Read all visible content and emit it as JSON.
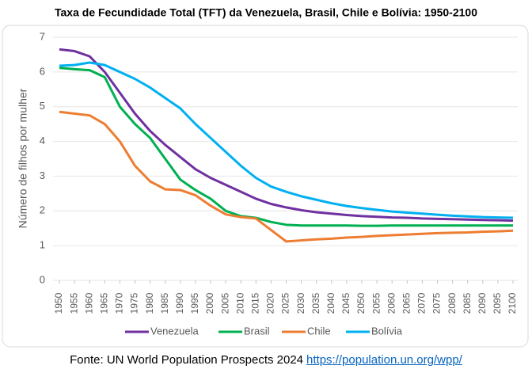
{
  "chart_data": {
    "type": "line",
    "title": "Taxa de Fecundidade Total (TFT) da Venezuela, Brasil, Chile e Bolívia: 1950-2100",
    "ylabel": "Número de filhos por mulher",
    "x": [
      1950,
      1955,
      1960,
      1965,
      1970,
      1975,
      1980,
      1985,
      1990,
      1995,
      2000,
      2005,
      2010,
      2015,
      2020,
      2025,
      2030,
      2035,
      2040,
      2045,
      2050,
      2055,
      2060,
      2065,
      2070,
      2075,
      2080,
      2085,
      2090,
      2095,
      2100
    ],
    "xlim": [
      1950,
      2100
    ],
    "xticks": [
      1950,
      1955,
      1960,
      1965,
      1970,
      1975,
      1980,
      1985,
      1990,
      1995,
      2000,
      2005,
      2010,
      2015,
      2020,
      2025,
      2030,
      2035,
      2040,
      2045,
      2050,
      2055,
      2060,
      2065,
      2070,
      2075,
      2080,
      2085,
      2090,
      2095,
      2100
    ],
    "ylim": [
      0,
      7
    ],
    "yticks": [
      0,
      1,
      2,
      3,
      4,
      5,
      6,
      7
    ],
    "grid": true,
    "legend": "bottom",
    "series": [
      {
        "name": "Venezuela",
        "color": "#7030a0",
        "values": [
          6.65,
          6.6,
          6.45,
          6.0,
          5.4,
          4.8,
          4.3,
          3.9,
          3.55,
          3.2,
          2.95,
          2.75,
          2.55,
          2.35,
          2.2,
          2.1,
          2.02,
          1.96,
          1.92,
          1.88,
          1.85,
          1.83,
          1.81,
          1.8,
          1.78,
          1.77,
          1.76,
          1.75,
          1.74,
          1.73,
          1.72
        ]
      },
      {
        "name": "Brasil",
        "color": "#00b050",
        "values": [
          6.12,
          6.08,
          6.05,
          5.85,
          5.0,
          4.5,
          4.1,
          3.5,
          2.9,
          2.6,
          2.35,
          2.0,
          1.85,
          1.8,
          1.68,
          1.6,
          1.58,
          1.58,
          1.58,
          1.58,
          1.57,
          1.57,
          1.58,
          1.58,
          1.58,
          1.58,
          1.58,
          1.58,
          1.58,
          1.58,
          1.58
        ]
      },
      {
        "name": "Chile",
        "color": "#ed7d31",
        "values": [
          4.85,
          4.8,
          4.75,
          4.5,
          4.0,
          3.3,
          2.85,
          2.62,
          2.6,
          2.45,
          2.15,
          1.9,
          1.82,
          1.78,
          1.45,
          1.12,
          1.15,
          1.18,
          1.2,
          1.23,
          1.25,
          1.28,
          1.3,
          1.32,
          1.34,
          1.36,
          1.37,
          1.38,
          1.4,
          1.41,
          1.43
        ]
      },
      {
        "name": "Bolívia",
        "color": "#00b0f0",
        "values": [
          6.18,
          6.2,
          6.27,
          6.2,
          6.0,
          5.8,
          5.55,
          5.25,
          4.95,
          4.5,
          4.1,
          3.7,
          3.3,
          2.95,
          2.7,
          2.55,
          2.42,
          2.32,
          2.22,
          2.14,
          2.08,
          2.03,
          1.98,
          1.95,
          1.92,
          1.89,
          1.86,
          1.84,
          1.82,
          1.81,
          1.8
        ]
      }
    ]
  },
  "source": {
    "text": "Fonte: UN World Population Prospects 2024",
    "link": "https://population.un.org/wpp/"
  }
}
